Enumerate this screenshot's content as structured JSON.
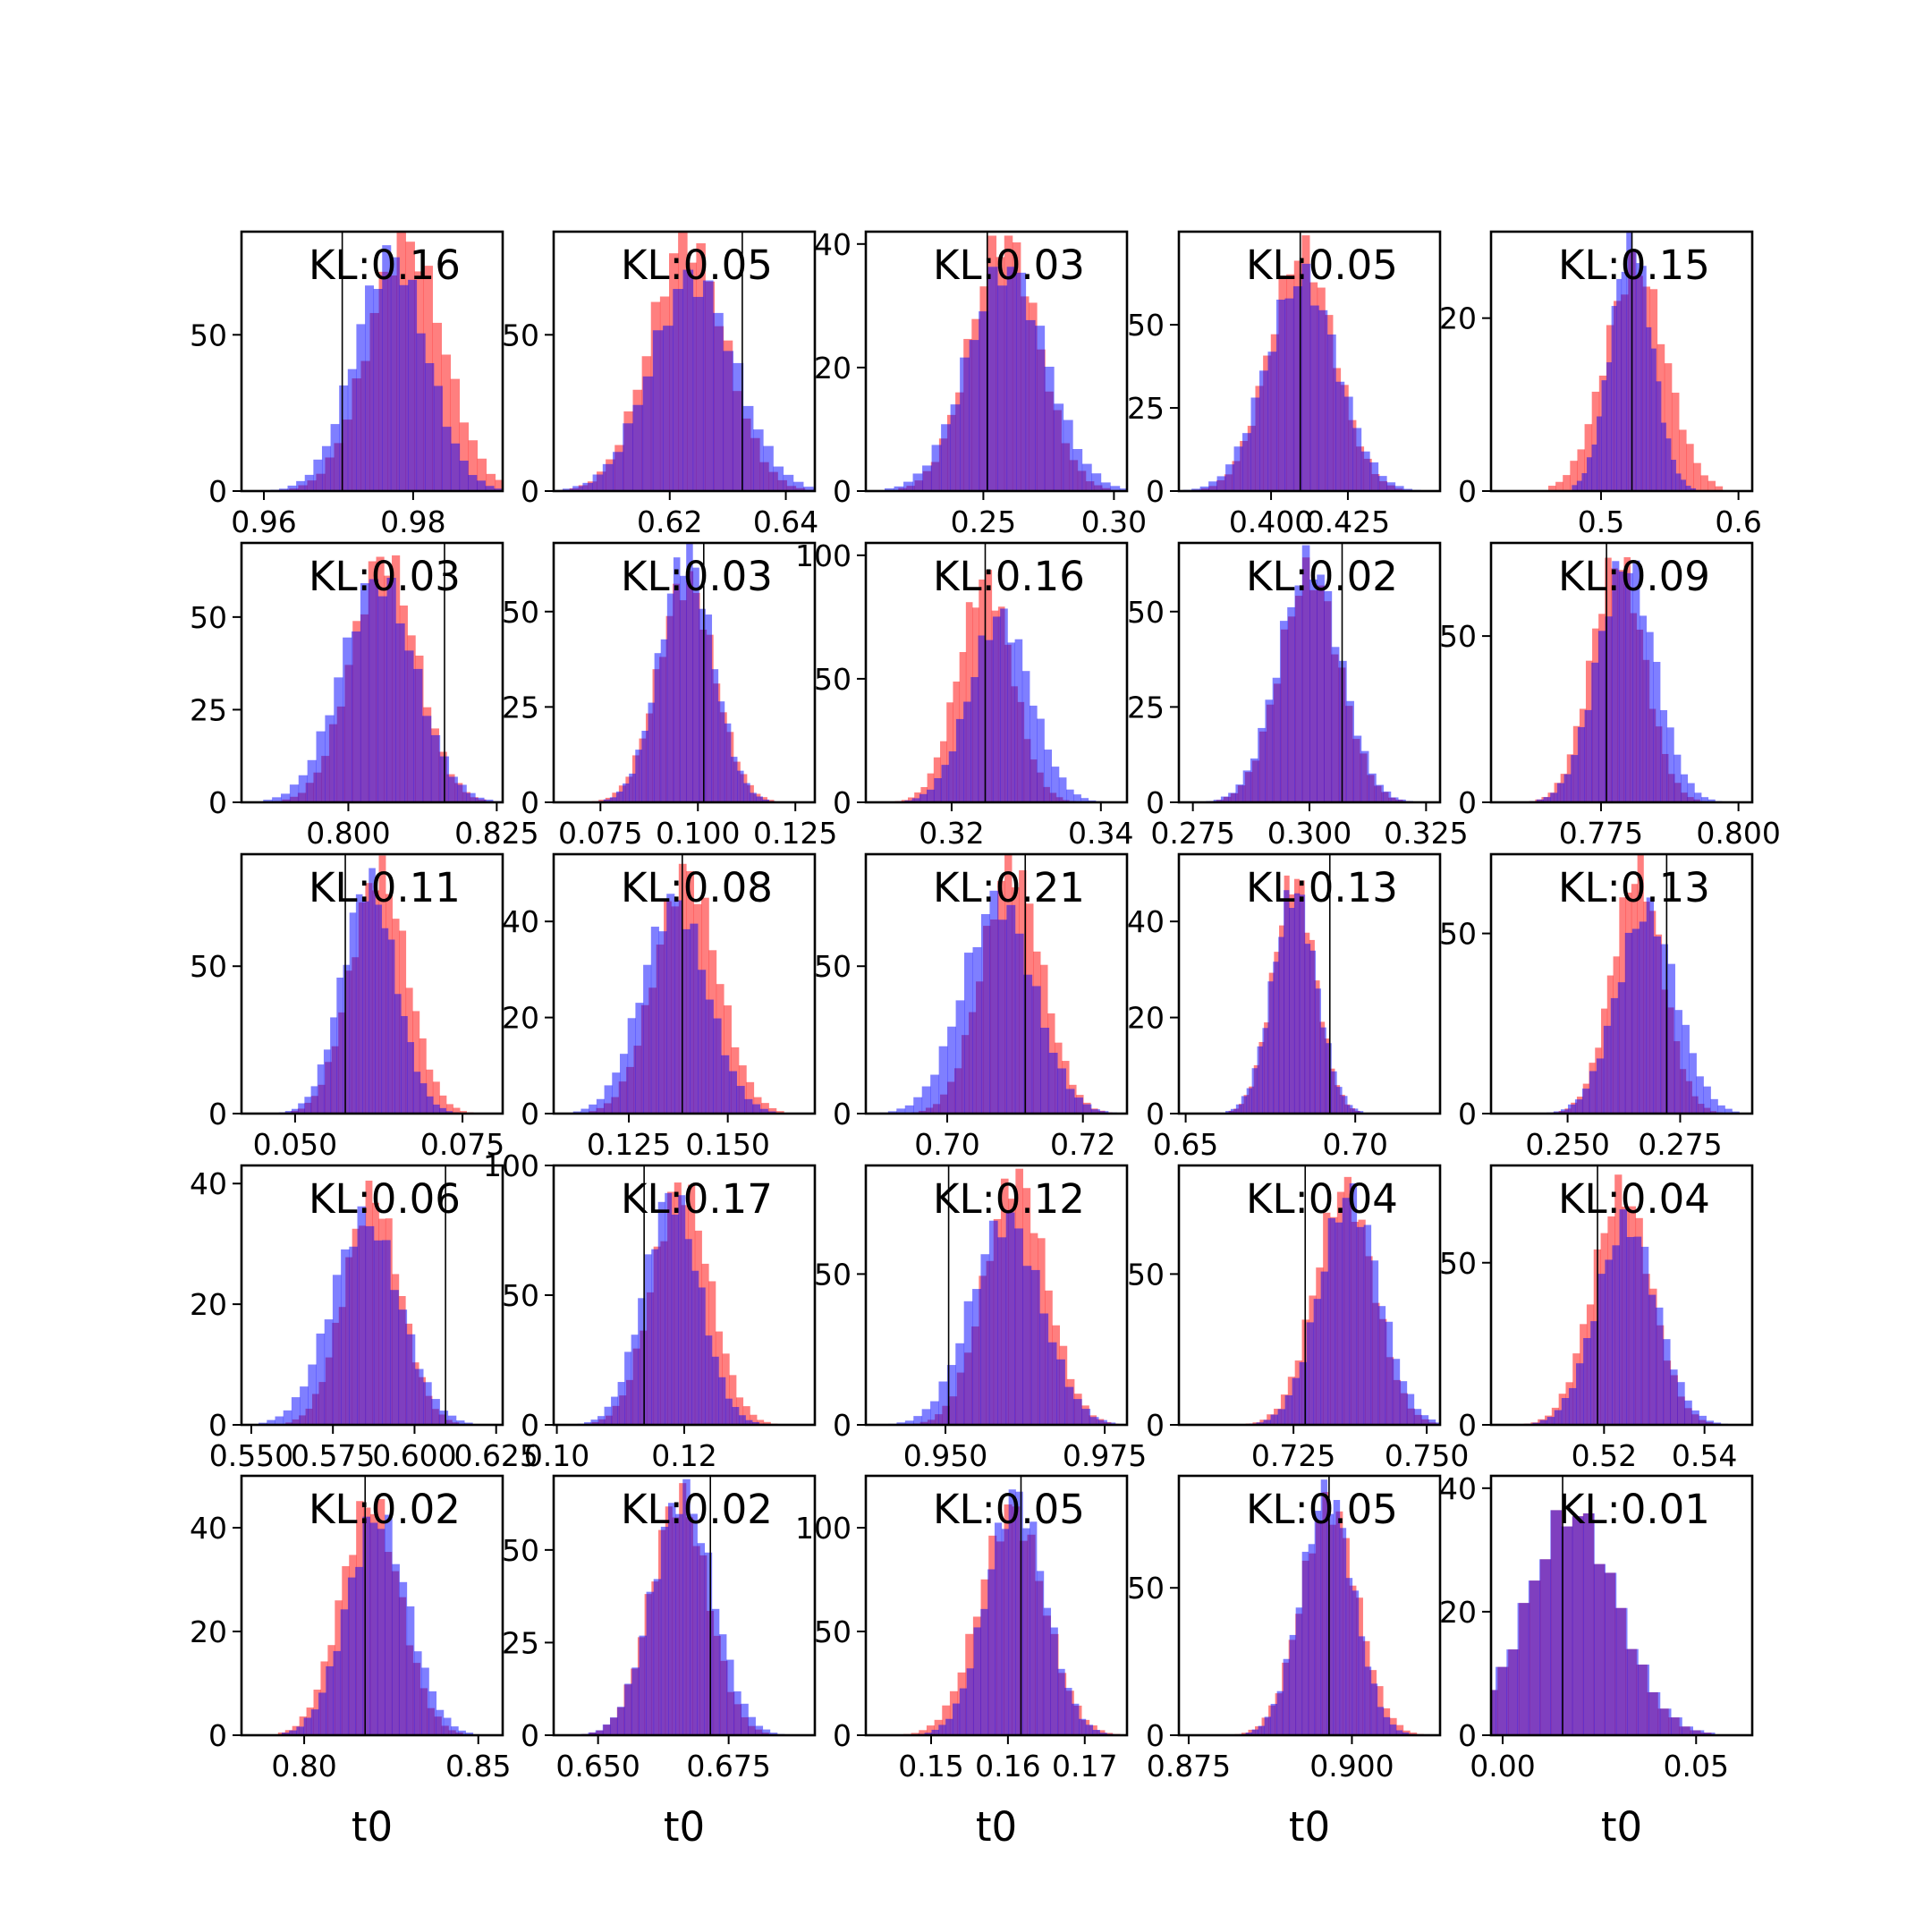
{
  "colors": {
    "red": "#ff0000",
    "blue": "#0000ff",
    "overlap": "#7f3fbf",
    "frame": "#000000",
    "background": "#ffffff"
  },
  "chart_data": [
    {
      "type": "bar",
      "kl_label": "KL:0.16",
      "xlim": [
        0.957,
        0.992
      ],
      "ylim": [
        0,
        83
      ],
      "xticks": [
        0.96,
        0.98
      ],
      "xtick_labels": [
        "0.96",
        "0.98"
      ],
      "yticks": [
        0,
        50
      ],
      "ytick_labels": [
        "0",
        "50"
      ],
      "true_value": 0.9705,
      "red": {
        "mean": 0.979,
        "sd": 0.005,
        "peak": 80
      },
      "blue": {
        "mean": 0.977,
        "sd": 0.0048,
        "peak": 75
      },
      "xlabel": ""
    },
    {
      "type": "bar",
      "kl_label": "KL:0.05",
      "xlim": [
        0.6,
        0.645
      ],
      "ylim": [
        0,
        83
      ],
      "xticks": [
        0.62,
        0.64
      ],
      "xtick_labels": [
        "0.62",
        "0.64"
      ],
      "yticks": [
        0,
        50
      ],
      "ytick_labels": [
        "0",
        "50"
      ],
      "true_value": 0.6325,
      "red": {
        "mean": 0.623,
        "sd": 0.0065,
        "peak": 80
      },
      "blue": {
        "mean": 0.624,
        "sd": 0.0072,
        "peak": 68
      },
      "xlabel": ""
    },
    {
      "type": "bar",
      "kl_label": "KL:0.03",
      "xlim": [
        0.205,
        0.305
      ],
      "ylim": [
        0,
        42
      ],
      "xticks": [
        0.25,
        0.3
      ],
      "xtick_labels": [
        "0.25",
        "0.30"
      ],
      "yticks": [
        0,
        20,
        40
      ],
      "ytick_labels": [
        "0",
        "20",
        "40"
      ],
      "true_value": 0.2515,
      "red": {
        "mean": 0.258,
        "sd": 0.013,
        "peak": 41
      },
      "blue": {
        "mean": 0.259,
        "sd": 0.015,
        "peak": 36
      },
      "xlabel": ""
    },
    {
      "type": "bar",
      "kl_label": "KL:0.05",
      "xlim": [
        0.37,
        0.455
      ],
      "ylim": [
        0,
        78
      ],
      "xticks": [
        0.4,
        0.425
      ],
      "xtick_labels": [
        "0.400",
        "0.425"
      ],
      "yticks": [
        0,
        25,
        50
      ],
      "ytick_labels": [
        "0",
        "25",
        "50"
      ],
      "true_value": 0.4095,
      "red": {
        "mean": 0.41,
        "sd": 0.0105,
        "peak": 72
      },
      "blue": {
        "mean": 0.41,
        "sd": 0.0115,
        "peak": 64
      },
      "xlabel": ""
    },
    {
      "type": "bar",
      "kl_label": "KL:0.15",
      "xlim": [
        0.42,
        0.61
      ],
      "ylim": [
        0,
        30
      ],
      "xticks": [
        0.5,
        0.6
      ],
      "xtick_labels": [
        "0.5",
        "0.6"
      ],
      "yticks": [
        0,
        20
      ],
      "ytick_labels": [
        "0",
        "20"
      ],
      "true_value": 0.5225,
      "red": {
        "mean": 0.525,
        "sd": 0.022,
        "peak": 26
      },
      "blue": {
        "mean": 0.522,
        "sd": 0.015,
        "peak": 29
      },
      "xlabel": ""
    },
    {
      "type": "bar",
      "kl_label": "KL:0.03",
      "xlim": [
        0.782,
        0.826
      ],
      "ylim": [
        0,
        70
      ],
      "xticks": [
        0.8,
        0.825
      ],
      "xtick_labels": [
        "0.800",
        "0.825"
      ],
      "yticks": [
        0,
        25,
        50
      ],
      "ytick_labels": [
        "0",
        "25",
        "50"
      ],
      "true_value": 0.8162,
      "red": {
        "mean": 0.806,
        "sd": 0.0055,
        "peak": 66
      },
      "blue": {
        "mean": 0.805,
        "sd": 0.0062,
        "peak": 60
      },
      "xlabel": ""
    },
    {
      "type": "bar",
      "kl_label": "KL:0.03",
      "xlim": [
        0.063,
        0.13
      ],
      "ylim": [
        0,
        68
      ],
      "xticks": [
        0.075,
        0.1,
        0.125
      ],
      "xtick_labels": [
        "0.075",
        "0.100",
        "0.125"
      ],
      "yticks": [
        0,
        25,
        50
      ],
      "ytick_labels": [
        "0",
        "25",
        "50"
      ],
      "true_value": 0.1015,
      "red": {
        "mean": 0.097,
        "sd": 0.0072,
        "peak": 58
      },
      "blue": {
        "mean": 0.097,
        "sd": 0.0068,
        "peak": 65
      },
      "xlabel": ""
    },
    {
      "type": "bar",
      "kl_label": "KL:0.16",
      "xlim": [
        0.3085,
        0.3435
      ],
      "ylim": [
        0,
        105
      ],
      "xticks": [
        0.32,
        0.34
      ],
      "xtick_labels": [
        "0.32",
        "0.34"
      ],
      "yticks": [
        0,
        50,
        100
      ],
      "ytick_labels": [
        "0",
        "50",
        "100"
      ],
      "true_value": 0.3245,
      "red": {
        "mean": 0.3245,
        "sd": 0.0036,
        "peak": 90
      },
      "blue": {
        "mean": 0.3265,
        "sd": 0.0041,
        "peak": 75
      },
      "xlabel": ""
    },
    {
      "type": "bar",
      "kl_label": "KL:0.02",
      "xlim": [
        0.272,
        0.328
      ],
      "ylim": [
        0,
        68
      ],
      "xticks": [
        0.275,
        0.3,
        0.325
      ],
      "xtick_labels": [
        "0.275",
        "0.300",
        "0.325"
      ],
      "yticks": [
        0,
        25,
        50
      ],
      "ytick_labels": [
        "0",
        "25",
        "50"
      ],
      "true_value": 0.307,
      "red": {
        "mean": 0.3,
        "sd": 0.0064,
        "peak": 60
      },
      "blue": {
        "mean": 0.3,
        "sd": 0.0066,
        "peak": 63
      },
      "xlabel": ""
    },
    {
      "type": "bar",
      "kl_label": "KL:0.09",
      "xlim": [
        0.755,
        0.8025
      ],
      "ylim": [
        0,
        78
      ],
      "xticks": [
        0.775,
        0.8
      ],
      "xtick_labels": [
        "0.775",
        "0.800"
      ],
      "yticks": [
        0,
        50
      ],
      "ytick_labels": [
        "0",
        "50"
      ],
      "true_value": 0.776,
      "red": {
        "mean": 0.778,
        "sd": 0.0048,
        "peak": 73
      },
      "blue": {
        "mean": 0.7795,
        "sd": 0.0052,
        "peak": 72
      },
      "xlabel": ""
    },
    {
      "type": "bar",
      "kl_label": "KL:0.11",
      "xlim": [
        0.042,
        0.081
      ],
      "ylim": [
        0,
        88
      ],
      "xticks": [
        0.05,
        0.075
      ],
      "xtick_labels": [
        "0.050",
        "0.075"
      ],
      "yticks": [
        0,
        50
      ],
      "ytick_labels": [
        "0",
        "50"
      ],
      "true_value": 0.0575,
      "red": {
        "mean": 0.0625,
        "sd": 0.0042,
        "peak": 82
      },
      "blue": {
        "mean": 0.061,
        "sd": 0.004,
        "peak": 78
      },
      "xlabel": ""
    },
    {
      "type": "bar",
      "kl_label": "KL:0.08",
      "xlim": [
        0.106,
        0.172
      ],
      "ylim": [
        0,
        54
      ],
      "xticks": [
        0.125,
        0.15
      ],
      "xtick_labels": [
        "0.125",
        "0.150"
      ],
      "yticks": [
        0,
        20,
        40
      ],
      "ytick_labels": [
        "0",
        "20",
        "40"
      ],
      "true_value": 0.1385,
      "red": {
        "mean": 0.1395,
        "sd": 0.0079,
        "peak": 50
      },
      "blue": {
        "mean": 0.1365,
        "sd": 0.0082,
        "peak": 44
      },
      "xlabel": ""
    },
    {
      "type": "bar",
      "kl_label": "KL:0.21",
      "xlim": [
        0.688,
        0.7265
      ],
      "ylim": [
        0,
        88
      ],
      "xticks": [
        0.7,
        0.72
      ],
      "xtick_labels": [
        "0.70",
        "0.72"
      ],
      "yticks": [
        0,
        50
      ],
      "ytick_labels": [
        "0",
        "50"
      ],
      "true_value": 0.7115,
      "red": {
        "mean": 0.7095,
        "sd": 0.0044,
        "peak": 84
      },
      "blue": {
        "mean": 0.7075,
        "sd": 0.0052,
        "peak": 72
      },
      "xlabel": ""
    },
    {
      "type": "bar",
      "kl_label": "KL:0.13",
      "xlim": [
        0.648,
        0.725
      ],
      "ylim": [
        0,
        54
      ],
      "xticks": [
        0.65,
        0.7
      ],
      "xtick_labels": [
        "0.65",
        "0.70"
      ],
      "yticks": [
        0,
        20,
        40
      ],
      "ytick_labels": [
        "0",
        "20",
        "40"
      ],
      "true_value": 0.6925,
      "red": {
        "mean": 0.682,
        "sd": 0.0062,
        "peak": 49
      },
      "blue": {
        "mean": 0.682,
        "sd": 0.0065,
        "peak": 46
      },
      "xlabel": ""
    },
    {
      "type": "bar",
      "kl_label": "KL:0.13",
      "xlim": [
        0.233,
        0.291
      ],
      "ylim": [
        0,
        72
      ],
      "xticks": [
        0.25,
        0.275
      ],
      "xtick_labels": [
        "0.250",
        "0.275"
      ],
      "yticks": [
        0,
        50
      ],
      "ytick_labels": [
        "0",
        "50"
      ],
      "true_value": 0.272,
      "red": {
        "mean": 0.2655,
        "sd": 0.0056,
        "peak": 67
      },
      "blue": {
        "mean": 0.2675,
        "sd": 0.0066,
        "peak": 56
      },
      "xlabel": ""
    },
    {
      "type": "bar",
      "kl_label": "KL:0.06",
      "xlim": [
        0.547,
        0.627
      ],
      "ylim": [
        0,
        43
      ],
      "xticks": [
        0.55,
        0.575,
        0.6,
        0.625
      ],
      "xtick_labels": [
        "0.550",
        "0.575",
        "0.600",
        "0.625"
      ],
      "yticks": [
        0,
        20,
        40
      ],
      "ytick_labels": [
        "0",
        "20",
        "40"
      ],
      "true_value": 0.6095,
      "red": {
        "mean": 0.587,
        "sd": 0.0085,
        "peak": 38
      },
      "blue": {
        "mean": 0.585,
        "sd": 0.0105,
        "peak": 34
      },
      "xlabel": ""
    },
    {
      "type": "bar",
      "kl_label": "KL:0.17",
      "xlim": [
        0.0995,
        0.1405
      ],
      "ylim": [
        0,
        100
      ],
      "xticks": [
        0.1,
        0.12
      ],
      "xtick_labels": [
        "0.10",
        "0.12"
      ],
      "yticks": [
        0,
        50,
        100
      ],
      "ytick_labels": [
        "0",
        "50",
        "100"
      ],
      "true_value": 0.1137,
      "red": {
        "mean": 0.1195,
        "sd": 0.0045,
        "peak": 92
      },
      "blue": {
        "mean": 0.118,
        "sd": 0.0044,
        "peak": 88
      },
      "xlabel": ""
    },
    {
      "type": "bar",
      "kl_label": "KL:0.12",
      "xlim": [
        0.9375,
        0.9785
      ],
      "ylim": [
        0,
        86
      ],
      "xticks": [
        0.95,
        0.975
      ],
      "xtick_labels": [
        "0.950",
        "0.975"
      ],
      "yticks": [
        0,
        50
      ],
      "ytick_labels": [
        "0",
        "50"
      ],
      "true_value": 0.9505,
      "red": {
        "mean": 0.961,
        "sd": 0.0048,
        "peak": 82
      },
      "blue": {
        "mean": 0.9595,
        "sd": 0.0055,
        "peak": 68
      },
      "xlabel": ""
    },
    {
      "type": "bar",
      "kl_label": "KL:0.04",
      "xlim": [
        0.7035,
        0.7525
      ],
      "ylim": [
        0,
        86
      ],
      "xticks": [
        0.725,
        0.75
      ],
      "xtick_labels": [
        "0.725",
        "0.750"
      ],
      "yticks": [
        0,
        50
      ],
      "ytick_labels": [
        "0",
        "50"
      ],
      "true_value": 0.7272,
      "red": {
        "mean": 0.7345,
        "sd": 0.0055,
        "peak": 78
      },
      "blue": {
        "mean": 0.7355,
        "sd": 0.0056,
        "peak": 76
      },
      "xlabel": ""
    },
    {
      "type": "bar",
      "kl_label": "KL:0.04",
      "xlim": [
        0.4975,
        0.5495
      ],
      "ylim": [
        0,
        80
      ],
      "xticks": [
        0.52,
        0.54
      ],
      "xtick_labels": [
        "0.52",
        "0.54"
      ],
      "yticks": [
        0,
        50
      ],
      "ytick_labels": [
        "0",
        "50"
      ],
      "true_value": 0.5187,
      "red": {
        "mean": 0.5235,
        "sd": 0.0058,
        "peak": 72
      },
      "blue": {
        "mean": 0.5245,
        "sd": 0.006,
        "peak": 62
      },
      "xlabel": ""
    },
    {
      "type": "bar",
      "kl_label": "KL:0.02",
      "xlim": [
        0.782,
        0.857
      ],
      "ylim": [
        0,
        50
      ],
      "xticks": [
        0.8,
        0.85
      ],
      "xtick_labels": [
        "0.80",
        "0.85"
      ],
      "yticks": [
        0,
        20,
        40
      ],
      "ytick_labels": [
        "0",
        "20",
        "40"
      ],
      "true_value": 0.8175,
      "red": {
        "mean": 0.819,
        "sd": 0.0085,
        "peak": 45
      },
      "blue": {
        "mean": 0.821,
        "sd": 0.0088,
        "peak": 42
      },
      "xlabel": "t0"
    },
    {
      "type": "bar",
      "kl_label": "KL:0.02",
      "xlim": [
        0.6415,
        0.6915
      ],
      "ylim": [
        0,
        70
      ],
      "xticks": [
        0.65,
        0.675
      ],
      "xtick_labels": [
        "0.650",
        "0.675"
      ],
      "yticks": [
        0,
        25,
        50
      ],
      "ytick_labels": [
        "0",
        "25",
        "50"
      ],
      "true_value": 0.6715,
      "red": {
        "mean": 0.6655,
        "sd": 0.0055,
        "peak": 64
      },
      "blue": {
        "mean": 0.6662,
        "sd": 0.0058,
        "peak": 65
      },
      "xlabel": "t0"
    },
    {
      "type": "bar",
      "kl_label": "KL:0.05",
      "xlim": [
        0.1415,
        0.1755
      ],
      "ylim": [
        0,
        125
      ],
      "xticks": [
        0.15,
        0.16,
        0.17
      ],
      "xtick_labels": [
        "0.15",
        "0.16",
        "0.17"
      ],
      "yticks": [
        0,
        50,
        100
      ],
      "ytick_labels": [
        "0",
        "50",
        "100"
      ],
      "true_value": 0.1617,
      "red": {
        "mean": 0.1605,
        "sd": 0.0042,
        "peak": 108
      },
      "blue": {
        "mean": 0.161,
        "sd": 0.0038,
        "peak": 115
      },
      "xlabel": "t0"
    },
    {
      "type": "bar",
      "kl_label": "KL:0.05",
      "xlim": [
        0.8735,
        0.9135
      ],
      "ylim": [
        0,
        88
      ],
      "xticks": [
        0.875,
        0.9
      ],
      "xtick_labels": [
        "0.875",
        "0.900"
      ],
      "yticks": [
        0,
        50
      ],
      "ytick_labels": [
        "0",
        "50"
      ],
      "true_value": 0.8965,
      "red": {
        "mean": 0.8965,
        "sd": 0.0043,
        "peak": 78
      },
      "blue": {
        "mean": 0.8962,
        "sd": 0.004,
        "peak": 82
      },
      "xlabel": "t0"
    },
    {
      "type": "bar",
      "kl_label": "KL:0.01",
      "xlim": [
        -0.003,
        0.0645
      ],
      "ylim": [
        0,
        42
      ],
      "xticks": [
        0.0,
        0.05
      ],
      "xtick_labels": [
        "0.00",
        "0.05"
      ],
      "yticks": [
        0,
        20,
        40
      ],
      "ytick_labels": [
        "0",
        "20",
        "40"
      ],
      "true_value": 0.0155,
      "red": {
        "mean": 0.018,
        "sd": 0.0115,
        "peak": 36
      },
      "blue": {
        "mean": 0.018,
        "sd": 0.0118,
        "peak": 36
      },
      "xlabel": "t0"
    }
  ]
}
